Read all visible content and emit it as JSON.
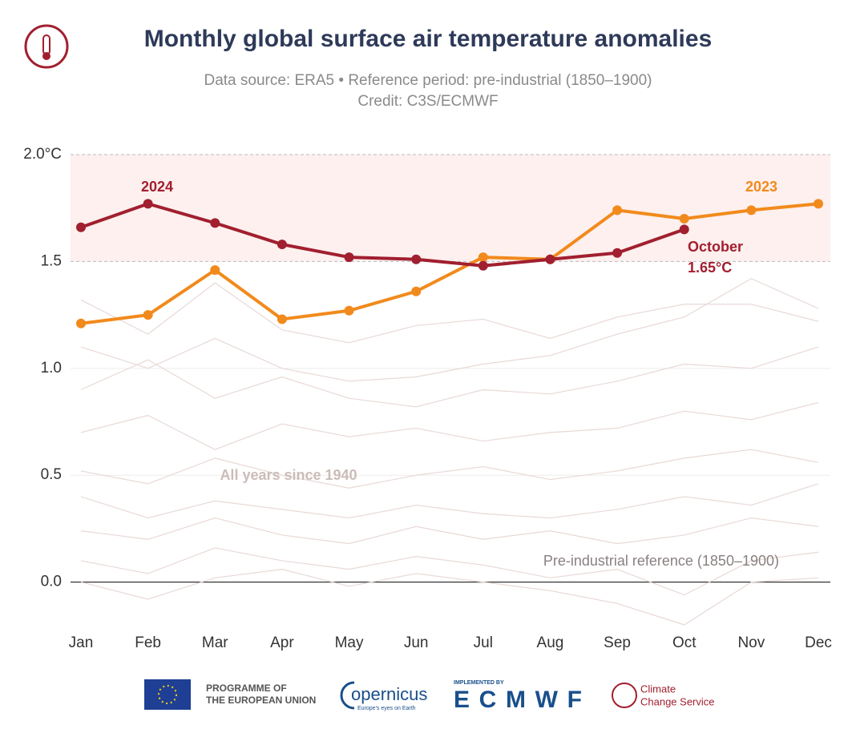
{
  "chart_data": {
    "type": "line",
    "title": "Monthly global surface air temperature anomalies",
    "subtitle": "Data source: ERA5 • Reference period: pre-industrial (1850–1900)",
    "credit": "Credit: C3S/ECMWF",
    "categories": [
      "Jan",
      "Feb",
      "Mar",
      "Apr",
      "May",
      "Jun",
      "Jul",
      "Aug",
      "Sep",
      "Oct",
      "Nov",
      "Dec"
    ],
    "series": [
      {
        "name": "2023",
        "color": "#f18a1c",
        "values": [
          1.21,
          1.25,
          1.46,
          1.23,
          1.27,
          1.36,
          1.52,
          1.51,
          1.74,
          1.7,
          1.74,
          1.77
        ]
      },
      {
        "name": "2024",
        "color": "#a11f2f",
        "values": [
          1.66,
          1.77,
          1.68,
          1.58,
          1.52,
          1.51,
          1.48,
          1.51,
          1.54,
          1.65,
          null,
          null
        ]
      }
    ],
    "background_color": "#e8d9d6",
    "background_series": [
      {
        "values": [
          1.32,
          1.16,
          1.4,
          1.18,
          1.12,
          1.2,
          1.23,
          1.14,
          1.24,
          1.3,
          1.3,
          1.22
        ]
      },
      {
        "values": [
          1.1,
          1.0,
          1.14,
          1.0,
          0.94,
          0.96,
          1.02,
          1.06,
          1.16,
          1.24,
          1.42,
          1.28
        ]
      },
      {
        "values": [
          0.9,
          1.04,
          0.86,
          0.96,
          0.86,
          0.82,
          0.9,
          0.88,
          0.94,
          1.02,
          1.0,
          1.1
        ]
      },
      {
        "values": [
          0.7,
          0.78,
          0.62,
          0.74,
          0.68,
          0.72,
          0.66,
          0.7,
          0.72,
          0.8,
          0.76,
          0.84
        ]
      },
      {
        "values": [
          0.52,
          0.46,
          0.58,
          0.5,
          0.44,
          0.5,
          0.54,
          0.48,
          0.52,
          0.58,
          0.62,
          0.56
        ]
      },
      {
        "values": [
          0.4,
          0.3,
          0.38,
          0.34,
          0.3,
          0.36,
          0.32,
          0.3,
          0.34,
          0.4,
          0.36,
          0.46
        ]
      },
      {
        "values": [
          0.24,
          0.2,
          0.3,
          0.22,
          0.18,
          0.26,
          0.2,
          0.24,
          0.18,
          0.22,
          0.3,
          0.26
        ]
      },
      {
        "values": [
          0.1,
          0.04,
          0.16,
          0.1,
          0.06,
          0.12,
          0.08,
          0.02,
          0.06,
          -0.06,
          0.1,
          0.14
        ]
      },
      {
        "values": [
          0.0,
          -0.08,
          0.02,
          0.06,
          -0.02,
          0.04,
          0.0,
          -0.04,
          -0.1,
          -0.2,
          0.0,
          0.02
        ]
      }
    ],
    "highlight_band": [
      1.5,
      2.0
    ],
    "ylim": [
      -0.2,
      2.0
    ],
    "yticks": [
      {
        "value": 0,
        "label": "0.0"
      },
      0.5,
      {
        "value": 1,
        "label": "1.0"
      },
      1.5,
      {
        "value": 2,
        "label": "2.0°C"
      }
    ],
    "annotations": [
      "2024",
      "2023",
      "October",
      "1.65°C",
      "All years since 1940",
      "Pre-industrial reference (1850–1900)"
    ]
  },
  "footer": {
    "eu": [
      "PROGRAMME OF",
      "THE EUROPEAN UNION"
    ],
    "copernicus": "opernicus",
    "copernicus_tagline": "Europe's eyes on Earth",
    "implemented": "IMPLEMENTED BY",
    "ecmwf": "ECMWF",
    "c3s": [
      "Climate",
      "Change Service"
    ]
  }
}
